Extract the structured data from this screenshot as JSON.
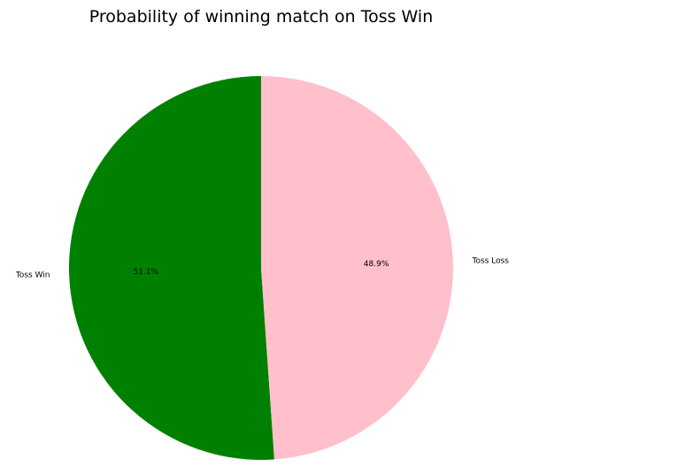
{
  "chart_data": {
    "type": "pie",
    "title": "Probability of winning match on Toss Win",
    "start_angle_deg": 90,
    "direction": "counterclockwise",
    "slices": [
      {
        "label": "Toss Win",
        "value": 51.1,
        "pct_label": "51.1%",
        "color": "#008000"
      },
      {
        "label": "Toss Loss",
        "value": 48.9,
        "pct_label": "48.9%",
        "color": "#ffc0cb"
      }
    ]
  }
}
